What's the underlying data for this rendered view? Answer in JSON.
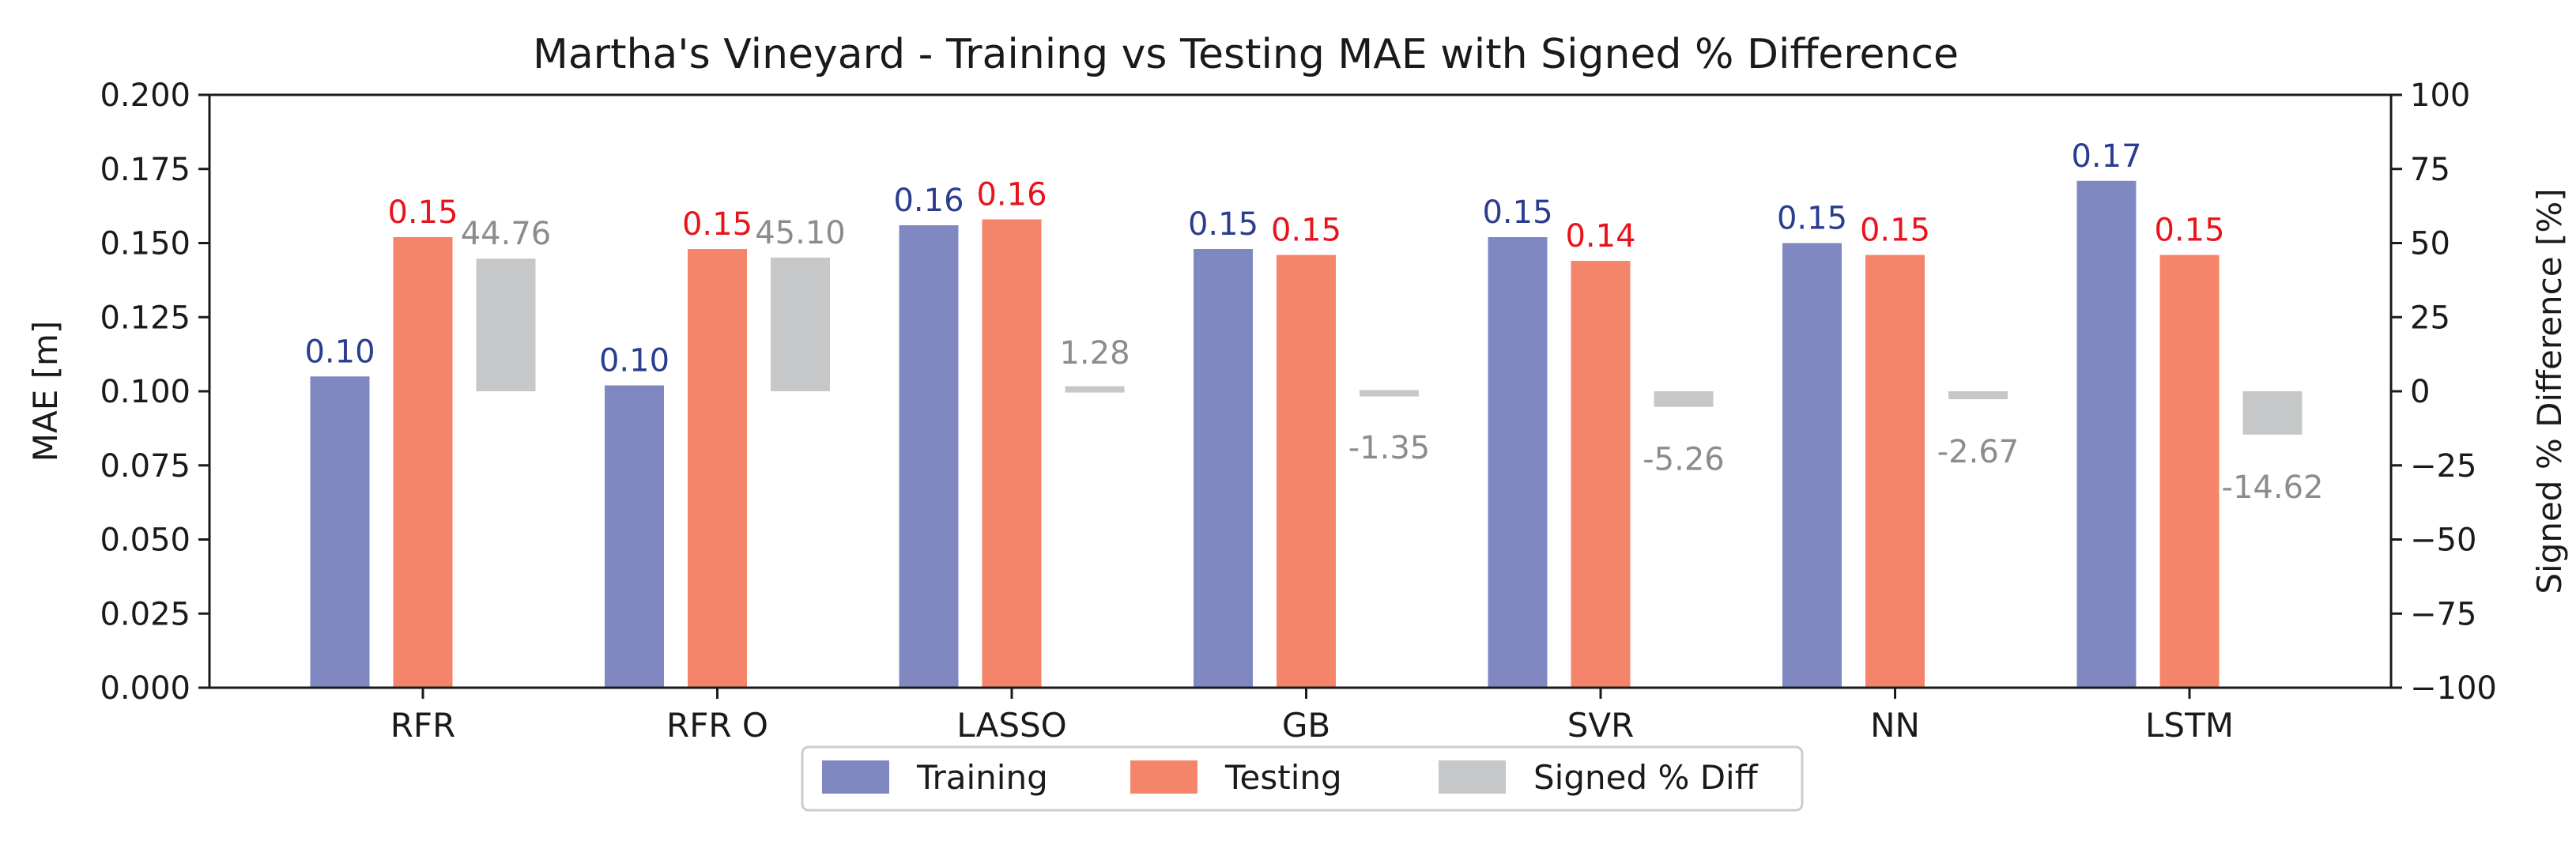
{
  "chart_data": {
    "type": "bar",
    "title": "Martha's Vineyard - Training vs Testing MAE with Signed % Difference",
    "ylabel": "MAE [m]",
    "ylabel_right": "Signed % Difference [%]",
    "ylim": [
      0,
      0.2
    ],
    "ylim_right": [
      -100,
      100
    ],
    "yticks": [
      "0.000",
      "0.025",
      "0.050",
      "0.075",
      "0.100",
      "0.125",
      "0.150",
      "0.175",
      "0.200"
    ],
    "yticks_right": [
      "−100",
      "−75",
      "−50",
      "−25",
      "0",
      "25",
      "50",
      "75",
      "100"
    ],
    "categories": [
      "RFR",
      "RFR O",
      "LASSO",
      "GB",
      "SVR",
      "NN",
      "LSTM"
    ],
    "series": [
      {
        "name": "Training",
        "axis": "left",
        "color": "#8088c2",
        "label_color": "#2b3d8f",
        "values": [
          0.105,
          0.102,
          0.156,
          0.148,
          0.152,
          0.15,
          0.171
        ],
        "labels": [
          "0.10",
          "0.10",
          "0.16",
          "0.15",
          "0.15",
          "0.15",
          "0.17"
        ]
      },
      {
        "name": "Testing",
        "axis": "left",
        "color": "#f4856a",
        "label_color": "#e8141c",
        "values": [
          0.152,
          0.148,
          0.158,
          0.146,
          0.144,
          0.146,
          0.146
        ],
        "labels": [
          "0.15",
          "0.15",
          "0.16",
          "0.15",
          "0.14",
          "0.15",
          "0.15"
        ]
      },
      {
        "name": "Signed % Diff",
        "axis": "right",
        "color": "#c6c7c9",
        "label_color": "#8c8c8c",
        "values": [
          44.76,
          45.1,
          1.28,
          -1.35,
          -5.26,
          -2.67,
          -14.62
        ],
        "labels": [
          "44.76",
          "45.10",
          "1.28",
          "-1.35",
          "-5.26",
          "-2.67",
          "-14.62"
        ]
      }
    ],
    "legend": {
      "position": "bottom-center",
      "entries": [
        "Training",
        "Testing",
        "Signed % Diff"
      ]
    },
    "grid": false
  }
}
